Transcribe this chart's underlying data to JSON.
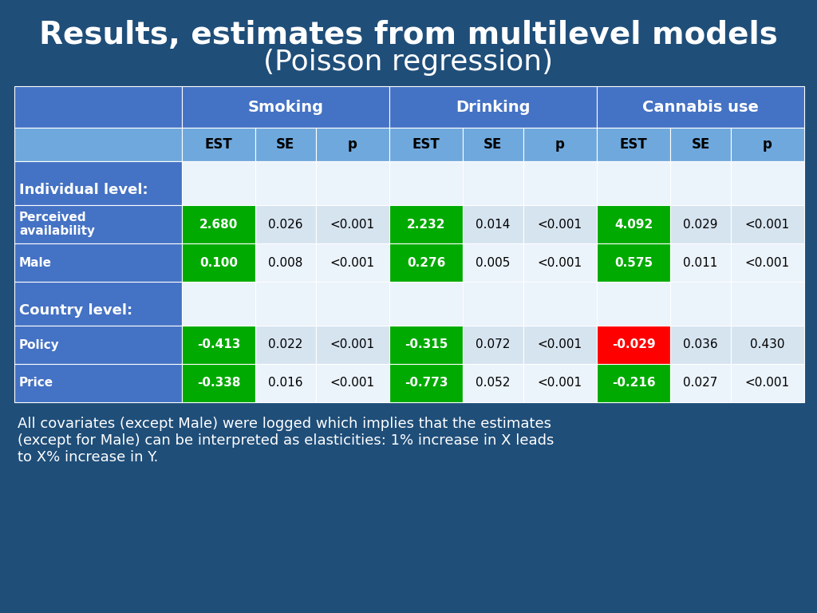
{
  "title_line1": "Results, estimates from multilevel models",
  "title_line2": "(Poisson regression)",
  "bg_color": "#1F4E79",
  "table_header_bg": "#4472C4",
  "table_subheader_bg": "#6FA8DC",
  "table_row_alt1": "#D6E4F0",
  "table_row_alt2": "#EBF3FB",
  "table_label_bg": "#4472C4",
  "green_cell": "#00AA00",
  "red_cell": "#FF0000",
  "col_headers": [
    "Smoking",
    "Drinking",
    "Cannabis use"
  ],
  "sub_headers": [
    "EST",
    "SE",
    "p",
    "EST",
    "SE",
    "p",
    "EST",
    "SE",
    "p"
  ],
  "rows": [
    {
      "label": "Individual level:",
      "label_bold": true,
      "is_section": true,
      "values": [
        "",
        "",
        "",
        "",
        "",
        "",
        "",
        "",
        ""
      ]
    },
    {
      "label": "Perceived\navailability",
      "label_bold": false,
      "is_section": false,
      "values": [
        "2.680",
        "0.026",
        "<0.001",
        "2.232",
        "0.014",
        "<0.001",
        "4.092",
        "0.029",
        "<0.001"
      ],
      "highlight": [
        true,
        false,
        false,
        true,
        false,
        false,
        true,
        false,
        false
      ],
      "highlight_color": [
        "#00AA00",
        null,
        null,
        "#00AA00",
        null,
        null,
        "#00AA00",
        null,
        null
      ]
    },
    {
      "label": "Male",
      "label_bold": false,
      "is_section": false,
      "values": [
        "0.100",
        "0.008",
        "<0.001",
        "0.276",
        "0.005",
        "<0.001",
        "0.575",
        "0.011",
        "<0.001"
      ],
      "highlight": [
        true,
        false,
        false,
        true,
        false,
        false,
        true,
        false,
        false
      ],
      "highlight_color": [
        "#00AA00",
        null,
        null,
        "#00AA00",
        null,
        null,
        "#00AA00",
        null,
        null
      ]
    },
    {
      "label": "Country level:",
      "label_bold": true,
      "is_section": true,
      "values": [
        "",
        "",
        "",
        "",
        "",
        "",
        "",
        "",
        ""
      ]
    },
    {
      "label": "Policy",
      "label_bold": false,
      "is_section": false,
      "values": [
        "-0.413",
        "0.022",
        "<0.001",
        "-0.315",
        "0.072",
        "<0.001",
        "-0.029",
        "0.036",
        "0.430"
      ],
      "highlight": [
        true,
        false,
        false,
        true,
        false,
        false,
        true,
        false,
        false
      ],
      "highlight_color": [
        "#00AA00",
        null,
        null,
        "#00AA00",
        null,
        null,
        "#FF0000",
        null,
        null
      ]
    },
    {
      "label": "Price",
      "label_bold": false,
      "is_section": false,
      "values": [
        "-0.338",
        "0.016",
        "<0.001",
        "-0.773",
        "0.052",
        "<0.001",
        "-0.216",
        "0.027",
        "<0.001"
      ],
      "highlight": [
        true,
        false,
        false,
        true,
        false,
        false,
        true,
        false,
        false
      ],
      "highlight_color": [
        "#00AA00",
        null,
        null,
        "#00AA00",
        null,
        null,
        "#00AA00",
        null,
        null
      ]
    }
  ],
  "footnote": "All covariates (except Male) were logged which implies that the estimates\n(except for Male) can be interpreted as elasticities: 1% increase in X leads\nto X% increase in Y.",
  "title_fontsize": 28,
  "subtitle_fontsize": 26
}
